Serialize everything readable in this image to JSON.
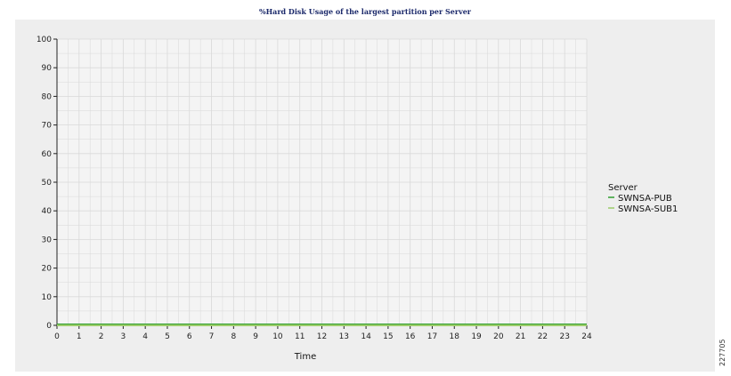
{
  "image_id": "227705",
  "chart_data": {
    "type": "line",
    "title": "%Hard Disk Usage of the largest partition per Server",
    "xlabel": "Time",
    "ylabel": "",
    "x": [
      0,
      1,
      2,
      3,
      4,
      5,
      6,
      7,
      8,
      9,
      10,
      11,
      12,
      13,
      14,
      15,
      16,
      17,
      18,
      19,
      20,
      21,
      22,
      23,
      24
    ],
    "xlim": [
      0,
      24
    ],
    "ylim": [
      0,
      100
    ],
    "yticks": [
      0,
      10,
      20,
      30,
      40,
      50,
      60,
      70,
      80,
      90,
      100
    ],
    "grid": true,
    "legend_position": "right",
    "legend_title": "Server",
    "series": [
      {
        "name": "SWNSA-PUB",
        "color": "#2f9e2f",
        "values": [
          0,
          0,
          0,
          0,
          0,
          0,
          0,
          0,
          0,
          0,
          0,
          0,
          0,
          0,
          0,
          0,
          0,
          0,
          0,
          0,
          0,
          0,
          0,
          0,
          0
        ]
      },
      {
        "name": "SWNSA-SUB1",
        "color": "#9ccc6a",
        "values": [
          0,
          0,
          0,
          0,
          0,
          0,
          0,
          0,
          0,
          0,
          0,
          0,
          0,
          0,
          0,
          0,
          0,
          0,
          0,
          0,
          0,
          0,
          0,
          0,
          0
        ]
      }
    ],
    "colors": {
      "panel_bg": "#eeeeee",
      "plot_bg": "#f4f4f4",
      "grid": "#d9d9d9"
    }
  }
}
